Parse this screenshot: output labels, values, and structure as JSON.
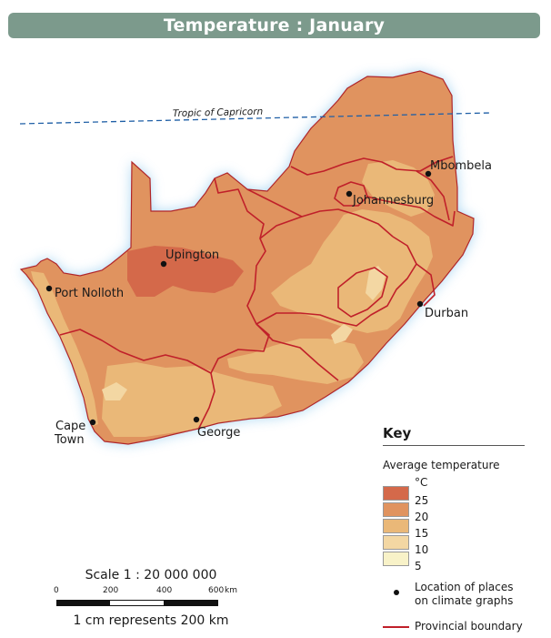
{
  "title": "Temperature : January",
  "colors": {
    "title_bar": "#7c9a8c",
    "band_25": "#d4694a",
    "band_20": "#e0935f",
    "band_15": "#eab878",
    "band_10": "#f3d7a3",
    "band_5": "#f8f2c8",
    "boundary": "#c0202a",
    "coast_glow": "#8cc8ee"
  },
  "tropic_label": "Tropic of Capricorn",
  "places": [
    {
      "name": "Mbombela"
    },
    {
      "name": "Johannesburg"
    },
    {
      "name": "Upington"
    },
    {
      "name": "Port Nolloth"
    },
    {
      "name": "Durban"
    },
    {
      "name": "Cape Town"
    },
    {
      "name": "George"
    }
  ],
  "key": {
    "heading": "Key",
    "subtitle": "Average temperature",
    "unit": "°C",
    "values": [
      "25",
      "20",
      "15",
      "10",
      "5"
    ],
    "dot_label": "Location of places on climate graphs",
    "line_label": "Provincial boundary"
  },
  "scale": {
    "title": "Scale 1 : 20 000 000",
    "ticks": [
      "0",
      "200",
      "400",
      "600",
      "km"
    ],
    "caption": "1 cm represents 200 km"
  }
}
